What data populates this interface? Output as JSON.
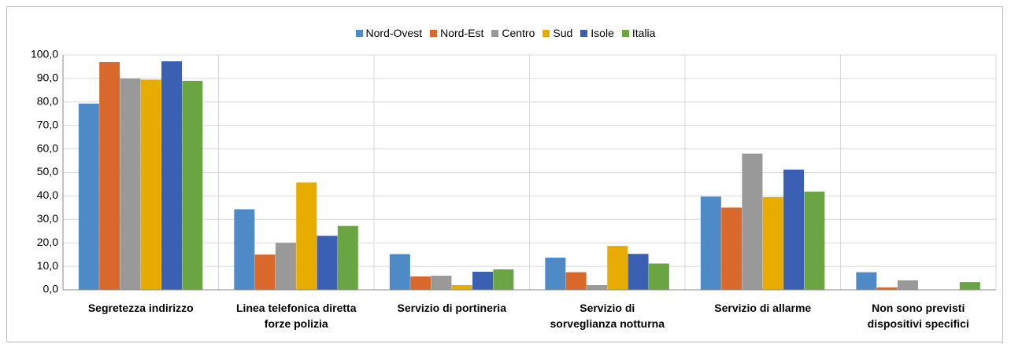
{
  "chart_data": {
    "type": "bar",
    "categories": [
      "Segretezza indirizzo",
      "Linea telefonica diretta\nforze polizia",
      "Servizio di portineria",
      "Servizio di\nsorveglianza notturna",
      "Servizio di allarme",
      "Non sono previsti\ndispositivi specifici"
    ],
    "series": [
      {
        "name": "Nord-Ovest",
        "color": "#4e8ac6",
        "values": [
          79.3,
          34.3,
          15.2,
          13.7,
          39.7,
          7.5
        ]
      },
      {
        "name": "Nord-Est",
        "color": "#d9692b",
        "values": [
          97.0,
          15.0,
          5.7,
          7.5,
          35.0,
          1.0
        ]
      },
      {
        "name": "Centro",
        "color": "#999999",
        "values": [
          90.0,
          20.0,
          6.0,
          2.0,
          58.0,
          4.0
        ]
      },
      {
        "name": "Sud",
        "color": "#e8ab00",
        "values": [
          89.5,
          45.7,
          2.0,
          18.7,
          39.5,
          0
        ]
      },
      {
        "name": "Isole",
        "color": "#3a5fb3",
        "values": [
          97.3,
          23.0,
          7.7,
          15.3,
          51.2,
          0
        ]
      },
      {
        "name": "Italia",
        "color": "#6aa544",
        "values": [
          89.0,
          27.2,
          8.7,
          11.2,
          41.8,
          3.3
        ]
      }
    ],
    "ylim": [
      0,
      100
    ],
    "yticks": [
      {
        "value": 0,
        "label": "0,0"
      },
      {
        "value": 10,
        "label": "10,0"
      },
      {
        "value": 20,
        "label": "20,0"
      },
      {
        "value": 30,
        "label": "30,0"
      },
      {
        "value": 40,
        "label": "40,0"
      },
      {
        "value": 50,
        "label": "50,0"
      },
      {
        "value": 60,
        "label": "60,0"
      },
      {
        "value": 70,
        "label": "70,0"
      },
      {
        "value": 80,
        "label": "80,0"
      },
      {
        "value": 90,
        "label": "90,0"
      },
      {
        "value": 100,
        "label": "100,0"
      }
    ],
    "grid": true,
    "legend": "top"
  }
}
